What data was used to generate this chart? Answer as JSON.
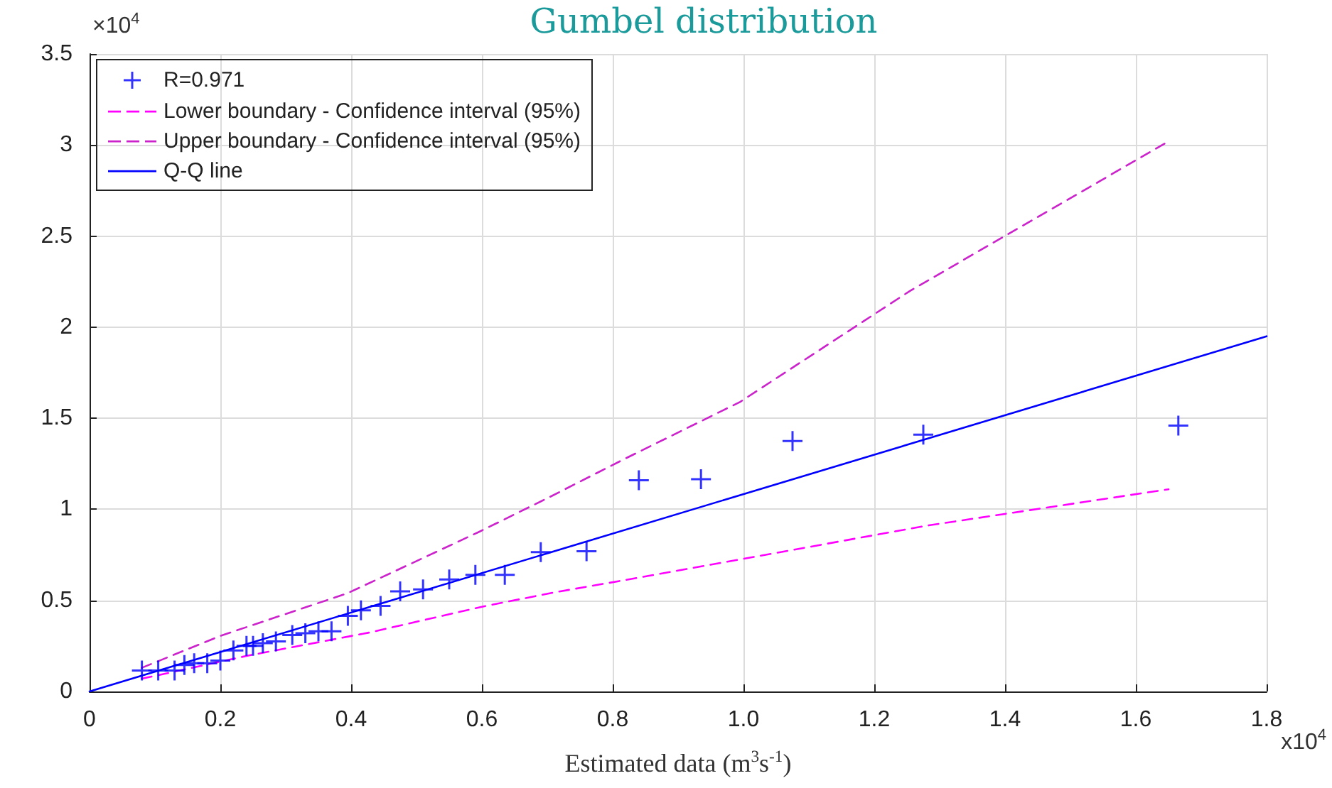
{
  "chart_data": {
    "type": "scatter",
    "title": "Gumbel distribution",
    "xlabel": "Estimated data (m$^{3}$s$^{-1}$)",
    "annotations": [
      "×10$^{4}$",
      "x10$^{4}$"
    ],
    "xlim": [
      0,
      1.8
    ],
    "ylim": [
      0,
      3.5
    ],
    "xticks": [
      0,
      0.2,
      0.4,
      0.6,
      0.8,
      {
        "value": 1,
        "label": "1.0"
      },
      1.2,
      1.4,
      1.6,
      1.8
    ],
    "yticks": [
      0,
      0.5,
      1,
      1.5,
      2,
      2.5,
      3,
      3.5
    ],
    "grid": true,
    "legend": "top left",
    "series": [
      {
        "name": "R=0.971",
        "marker": "cross",
        "color": "#0000ff",
        "x": [
          0.08,
          0.105,
          0.13,
          0.145,
          0.16,
          0.18,
          0.2,
          0.22,
          0.24,
          0.25,
          0.265,
          0.285,
          0.31,
          0.33,
          0.35,
          0.37,
          0.395,
          0.415,
          0.445,
          0.475,
          0.51,
          0.55,
          0.59,
          0.635,
          0.69,
          0.76,
          0.84,
          0.935,
          1.075,
          1.275,
          1.665
        ],
        "values": [
          0.115,
          0.115,
          0.115,
          0.145,
          0.155,
          0.155,
          0.17,
          0.225,
          0.25,
          0.25,
          0.265,
          0.275,
          0.31,
          0.32,
          0.33,
          0.33,
          0.415,
          0.445,
          0.47,
          0.55,
          0.56,
          0.615,
          0.64,
          0.64,
          0.765,
          0.77,
          1.16,
          1.165,
          1.375,
          1.41,
          1.46
        ]
      },
      {
        "name": "Lower boundary - Confidence interval (95%)",
        "type": "line",
        "marker": "none",
        "line_style": "dashed",
        "color": "#ff00ff",
        "x": [
          0.08,
          0.24,
          0.43,
          0.6,
          0.705,
          0.84,
          0.995,
          1.28,
          1.65
        ],
        "values": [
          0.07,
          0.195,
          0.325,
          0.465,
          0.54,
          0.625,
          0.725,
          0.91,
          1.11
        ]
      },
      {
        "name": "Upper boundary - Confidence interval (95%)",
        "type": "line",
        "marker": "none",
        "line_style": "dashed",
        "color": "#cc22cc",
        "x": [
          0.08,
          0.2,
          0.395,
          0.595,
          0.705,
          0.82,
          0.995,
          1.255,
          1.65
        ],
        "values": [
          0.13,
          0.305,
          0.54,
          0.875,
          1.07,
          1.28,
          1.59,
          2.2,
          3.02
        ]
      },
      {
        "name": "Q-Q line",
        "type": "line",
        "marker": "none",
        "line_style": "solid",
        "color": "#0000ff",
        "x": [
          0,
          1.8
        ],
        "values": [
          0,
          1.95
        ]
      }
    ]
  }
}
